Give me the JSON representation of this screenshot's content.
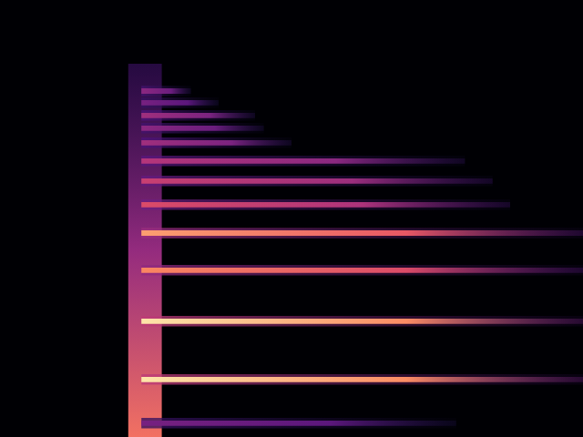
{
  "chart_data": {
    "type": "spectrogram",
    "xlim": [
      0,
      4
    ],
    "ylim": [
      0,
      12
    ],
    "tick_labels": false,
    "grid": false,
    "onset": {
      "start": 0.88,
      "end": 1.11,
      "top": 10.25,
      "intensity": 0.7
    },
    "harmonics": [
      {
        "frequency": 9.5,
        "start": 0.97,
        "end": 1.31,
        "intensity": 0.4
      },
      {
        "frequency": 9.18,
        "start": 0.97,
        "end": 1.5,
        "intensity": 0.35
      },
      {
        "frequency": 8.83,
        "start": 0.97,
        "end": 1.75,
        "intensity": 0.45
      },
      {
        "frequency": 8.48,
        "start": 0.97,
        "end": 1.81,
        "intensity": 0.4
      },
      {
        "frequency": 8.08,
        "start": 0.97,
        "end": 2.0,
        "intensity": 0.45
      },
      {
        "frequency": 7.58,
        "start": 0.97,
        "end": 3.19,
        "intensity": 0.5
      },
      {
        "frequency": 7.03,
        "start": 0.97,
        "end": 3.38,
        "intensity": 0.55
      },
      {
        "frequency": 6.38,
        "start": 0.97,
        "end": 3.5,
        "intensity": 0.6
      },
      {
        "frequency": 5.6,
        "start": 0.97,
        "end": 4.0,
        "intensity": 0.8
      },
      {
        "frequency": 4.58,
        "start": 0.97,
        "end": 4.0,
        "intensity": 0.75
      },
      {
        "frequency": 3.18,
        "start": 0.97,
        "end": 4.0,
        "intensity": 0.95
      },
      {
        "frequency": 1.58,
        "start": 0.97,
        "end": 4.0,
        "intensity": 0.95
      },
      {
        "frequency": 0.38,
        "start": 0.97,
        "end": 3.13,
        "intensity": 0.35
      }
    ]
  }
}
